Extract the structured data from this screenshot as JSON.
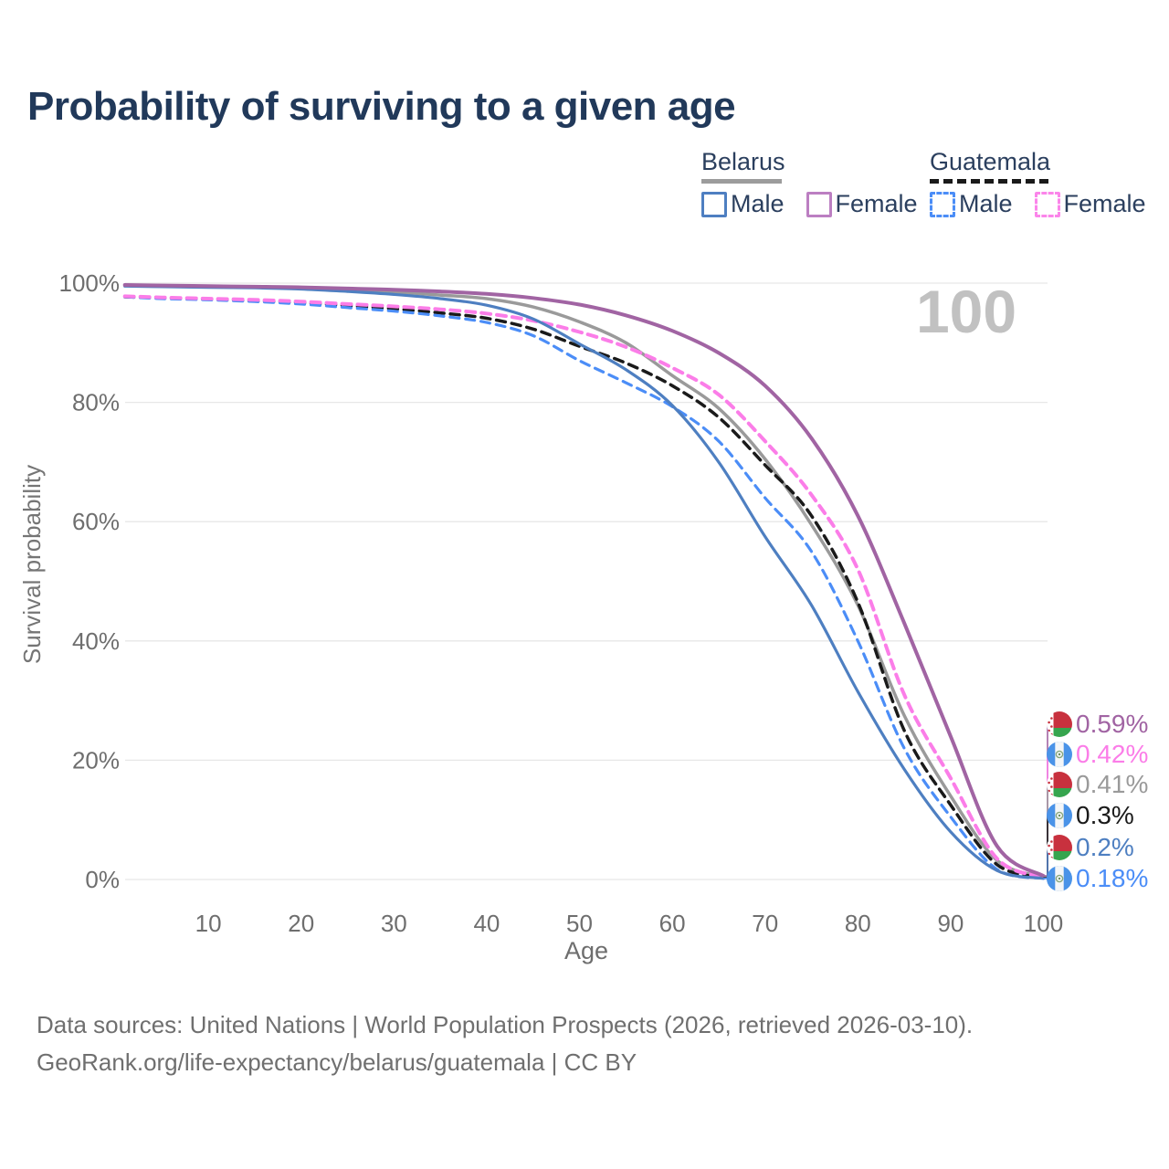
{
  "title": "Probability of surviving to a given age",
  "hover_age_indicator": "100",
  "legend": {
    "groups": [
      {
        "name": "Belarus",
        "line_style": "solid",
        "underline_color": "#9c9c9c",
        "items": [
          {
            "label": "Male",
            "color": "#4e7fc1"
          },
          {
            "label": "Female",
            "color": "#bc7fc2"
          }
        ]
      },
      {
        "name": "Guatemala",
        "line_style": "dashed",
        "underline_color": "#1a1a1a",
        "items": [
          {
            "label": "Male",
            "color": "#4b8df7"
          },
          {
            "label": "Female",
            "color": "#fb85ea"
          }
        ]
      }
    ]
  },
  "chart_data": {
    "type": "line",
    "title": "Probability of surviving to a given age",
    "xlabel": "Age",
    "ylabel": "Survival probability",
    "xlim": [
      0,
      100
    ],
    "ylim": [
      0,
      100
    ],
    "grid": "horizontal",
    "x_ticks": [
      10,
      20,
      30,
      40,
      50,
      60,
      70,
      80,
      90,
      100
    ],
    "y_ticks": [
      "0%",
      "20%",
      "40%",
      "60%",
      "80%",
      "100%"
    ],
    "legend_position": "top-right",
    "ages": [
      1,
      5,
      10,
      15,
      20,
      25,
      30,
      35,
      40,
      45,
      50,
      55,
      60,
      65,
      70,
      75,
      80,
      85,
      90,
      95,
      100
    ],
    "series": [
      {
        "name": "Belarus Female",
        "country": "belarus",
        "sex": "female",
        "style": "solid",
        "color": "#a164a3",
        "end_label": "0.59%",
        "values": [
          99.7,
          99.6,
          99.5,
          99.4,
          99.3,
          99.1,
          98.9,
          98.6,
          98.2,
          97.5,
          96.4,
          94.6,
          92.0,
          88.3,
          82.8,
          74.0,
          61.0,
          43.0,
          24.0,
          5.6,
          0.59
        ]
      },
      {
        "name": "Guatemala Female",
        "country": "guatemala",
        "sex": "female",
        "style": "dashed",
        "color": "#fb7de8",
        "end_label": "0.42%",
        "values": [
          97.8,
          97.6,
          97.4,
          97.2,
          96.9,
          96.5,
          96.1,
          95.6,
          94.9,
          93.7,
          91.8,
          89.3,
          85.8,
          81.3,
          73.5,
          64.5,
          52.0,
          31.0,
          17.0,
          3.5,
          0.42
        ]
      },
      {
        "name": "Belarus Both sexes",
        "country": "belarus",
        "sex": "both",
        "style": "solid",
        "color": "#9a9a9a",
        "end_label": "0.41%",
        "values": [
          99.6,
          99.5,
          99.4,
          99.3,
          99.1,
          98.8,
          98.5,
          98.0,
          97.4,
          96.0,
          93.5,
          90.0,
          84.5,
          79.0,
          70.5,
          59.5,
          46.0,
          27.5,
          14.0,
          3.2,
          0.41
        ]
      },
      {
        "name": "Guatemala Both sexes",
        "country": "guatemala",
        "sex": "both",
        "style": "dashed",
        "color": "#1a1a1a",
        "end_label": "0.3%",
        "values": [
          97.7,
          97.5,
          97.3,
          97.0,
          96.7,
          96.2,
          95.7,
          95.0,
          94.1,
          92.3,
          89.4,
          86.6,
          82.8,
          77.5,
          69.5,
          61.0,
          46.5,
          25.0,
          12.5,
          2.5,
          0.3
        ]
      },
      {
        "name": "Belarus Male",
        "country": "belarus",
        "sex": "male",
        "style": "solid",
        "color": "#4e7fc1",
        "end_label": "0.2%",
        "values": [
          99.5,
          99.4,
          99.3,
          99.2,
          99.0,
          98.6,
          98.1,
          97.4,
          96.3,
          94.0,
          89.8,
          85.5,
          79.5,
          70.0,
          57.5,
          46.0,
          31.5,
          18.5,
          8.0,
          1.5,
          0.2
        ]
      },
      {
        "name": "Guatemala Male",
        "country": "guatemala",
        "sex": "male",
        "style": "dashed",
        "color": "#4b8df7",
        "end_label": "0.18%",
        "values": [
          97.7,
          97.4,
          97.2,
          96.9,
          96.5,
          95.9,
          95.3,
          94.5,
          93.4,
          91.2,
          87.0,
          83.3,
          79.3,
          73.5,
          64.0,
          55.0,
          40.0,
          22.0,
          10.5,
          1.7,
          0.18
        ]
      }
    ]
  },
  "footer": {
    "line1": "Data sources: United Nations | World Population Prospects (2026, retrieved 2026-03-10).",
    "line2": "GeoRank.org/life-expectancy/belarus/guatemala | CC BY"
  }
}
